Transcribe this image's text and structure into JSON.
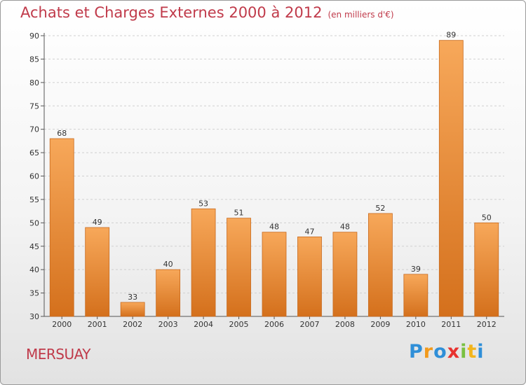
{
  "title": "Achats et Charges Externes 2000 à 2012",
  "unit": "(en milliers d'€)",
  "place": "MERSUAY",
  "logo": {
    "letters": [
      "P",
      "r",
      "o",
      "x",
      "i",
      "t",
      "i"
    ],
    "colors": [
      "#2f8fd8",
      "#f29a1c",
      "#2f8fd8",
      "#e8322f",
      "#7ac142",
      "#f2b51c",
      "#2f8fd8"
    ]
  },
  "colors": {
    "bar_top": "#f7a85a",
    "bar_bottom": "#d4701c",
    "bar_border": "#c86a1e",
    "text_accent": "#c03a4a"
  },
  "chart_data": {
    "type": "bar",
    "title": "Achats et Charges Externes 2000 à 2012",
    "categories": [
      "2000",
      "2001",
      "2002",
      "2003",
      "2004",
      "2005",
      "2006",
      "2007",
      "2008",
      "2009",
      "2010",
      "2011",
      "2012"
    ],
    "values": [
      68,
      49,
      33,
      40,
      53,
      51,
      48,
      47,
      48,
      52,
      39,
      89,
      50
    ],
    "ylim": [
      30,
      90
    ],
    "yticks": [
      30,
      35,
      40,
      45,
      50,
      55,
      60,
      65,
      70,
      75,
      80,
      85,
      90
    ],
    "grid": true,
    "legend": "none"
  }
}
